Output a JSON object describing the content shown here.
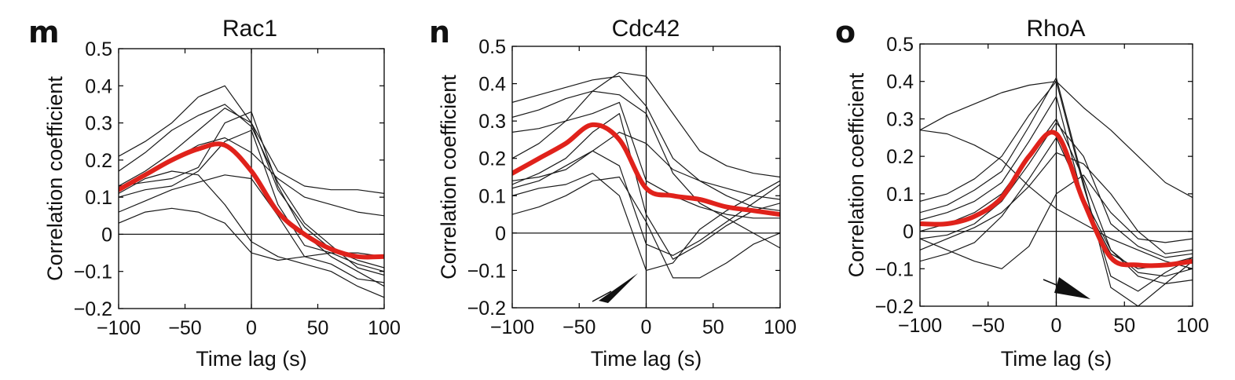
{
  "chart_data": [
    {
      "type": "line",
      "panel_letter": "m",
      "title": "Rac1",
      "xlabel": "Time lag (s)",
      "ylabel": "Correlation coefficient",
      "xlim": [
        -100,
        100
      ],
      "ylim": [
        -0.2,
        0.5
      ],
      "xticks": [
        -100,
        -50,
        0,
        50,
        100
      ],
      "yticks": [
        -0.2,
        -0.1,
        0,
        0.1,
        0.2,
        0.3,
        0.4,
        0.5
      ],
      "xtick_labels": [
        "−100",
        "−50",
        "0",
        "50",
        "100"
      ],
      "ytick_labels": [
        "−0.2",
        "−0.1",
        "0",
        "0.1",
        "0.2",
        "0.3",
        "0.4",
        "0.5"
      ],
      "x": [
        -100,
        -80,
        -60,
        -40,
        -20,
        0,
        20,
        40,
        60,
        80,
        100
      ],
      "mean": [
        0.12,
        0.16,
        0.2,
        0.23,
        0.24,
        0.17,
        0.06,
        0.0,
        -0.04,
        -0.06,
        -0.06
      ],
      "series": [
        {
          "values": [
            0.21,
            0.25,
            0.3,
            0.37,
            0.4,
            0.3,
            0.12,
            0.02,
            -0.04,
            -0.07,
            -0.09
          ]
        },
        {
          "values": [
            0.17,
            0.22,
            0.28,
            0.32,
            0.35,
            0.29,
            0.14,
            0.03,
            -0.03,
            -0.09,
            -0.11
          ]
        },
        {
          "values": [
            0.13,
            0.17,
            0.22,
            0.28,
            0.34,
            0.3,
            0.17,
            0.13,
            0.12,
            0.12,
            0.11
          ]
        },
        {
          "values": [
            0.12,
            0.16,
            0.2,
            0.24,
            0.26,
            0.22,
            0.15,
            0.1,
            0.08,
            0.06,
            0.05
          ]
        },
        {
          "values": [
            0.13,
            0.14,
            0.15,
            0.18,
            0.3,
            0.33,
            0.13,
            0.0,
            -0.06,
            -0.1,
            -0.14
          ]
        },
        {
          "values": [
            0.11,
            0.15,
            0.17,
            0.16,
            0.08,
            -0.02,
            -0.06,
            -0.08,
            -0.1,
            -0.14,
            -0.17
          ]
        },
        {
          "values": [
            0.06,
            0.09,
            0.12,
            0.14,
            0.16,
            0.15,
            0.05,
            -0.06,
            -0.08,
            -0.12,
            -0.13
          ]
        },
        {
          "values": [
            0.03,
            0.06,
            0.07,
            0.06,
            0.03,
            -0.05,
            -0.07,
            -0.06,
            -0.05,
            -0.08,
            -0.1
          ]
        },
        {
          "values": [
            0.1,
            0.12,
            0.13,
            0.17,
            0.25,
            0.28,
            0.08,
            -0.03,
            -0.05,
            -0.05,
            -0.06
          ]
        },
        {
          "values": [
            0.0,
            0.0,
            0.0,
            0.0,
            0.0,
            0.0,
            0.0,
            0.0,
            0.0,
            0.0,
            0.0
          ]
        }
      ]
    },
    {
      "type": "line",
      "panel_letter": "n",
      "title": "Cdc42",
      "xlabel": "Time lag (s)",
      "ylabel": "Correlation coefficient",
      "xlim": [
        -100,
        100
      ],
      "ylim": [
        -0.2,
        0.5
      ],
      "xticks": [
        -100,
        -50,
        0,
        50,
        100
      ],
      "yticks": [
        -0.2,
        -0.1,
        0,
        0.1,
        0.2,
        0.3,
        0.4,
        0.5
      ],
      "xtick_labels": [
        "−100",
        "−50",
        "0",
        "50",
        "100"
      ],
      "ytick_labels": [
        "−0.2",
        "−0.1",
        "0",
        "0.1",
        "0.2",
        "0.3",
        "0.4",
        "0.5"
      ],
      "annotation": "arrowhead at (−25, −0.13) pointing toward lag 0",
      "x": [
        -100,
        -80,
        -60,
        -40,
        -20,
        0,
        20,
        40,
        60,
        80,
        100
      ],
      "mean": [
        0.16,
        0.2,
        0.24,
        0.29,
        0.25,
        0.12,
        0.1,
        0.09,
        0.07,
        0.06,
        0.05
      ],
      "series": [
        {
          "values": [
            0.35,
            0.37,
            0.39,
            0.41,
            0.42,
            0.34,
            0.2,
            0.14,
            0.1,
            0.07,
            0.06
          ]
        },
        {
          "values": [
            0.2,
            0.24,
            0.3,
            0.38,
            0.43,
            0.42,
            0.32,
            0.22,
            0.18,
            0.16,
            0.15
          ]
        },
        {
          "values": [
            0.31,
            0.33,
            0.36,
            0.38,
            0.37,
            0.32,
            0.16,
            0.08,
            0.04,
            0.0,
            -0.04
          ]
        },
        {
          "values": [
            0.27,
            0.28,
            0.3,
            0.32,
            0.35,
            0.14,
            0.1,
            0.07,
            0.05,
            0.04,
            0.04
          ]
        },
        {
          "values": [
            0.13,
            0.16,
            0.2,
            0.27,
            0.32,
            0.05,
            -0.07,
            -0.03,
            0.02,
            0.06,
            0.08
          ]
        },
        {
          "values": [
            0.12,
            0.14,
            0.18,
            0.22,
            0.18,
            -0.03,
            -0.06,
            -0.02,
            0.03,
            0.08,
            0.13
          ]
        },
        {
          "values": [
            0.1,
            0.12,
            0.13,
            0.16,
            0.1,
            -0.1,
            -0.08,
            0.01,
            0.06,
            0.1,
            0.14
          ]
        },
        {
          "values": [
            0.05,
            0.07,
            0.1,
            0.14,
            0.15,
            0.03,
            -0.12,
            -0.12,
            -0.08,
            -0.03,
            0.0
          ]
        },
        {
          "values": [
            0.14,
            0.15,
            0.17,
            0.22,
            0.27,
            0.24,
            0.17,
            0.14,
            0.12,
            0.1,
            0.09
          ]
        },
        {
          "values": [
            0.0,
            0.0,
            0.0,
            0.0,
            0.0,
            0.0,
            0.0,
            0.0,
            0.0,
            0.0,
            0.0
          ]
        }
      ]
    },
    {
      "type": "line",
      "panel_letter": "o",
      "title": "RhoA",
      "xlabel": "Time lag (s)",
      "ylabel": "Correlation coefficient",
      "xlim": [
        -100,
        100
      ],
      "ylim": [
        -0.2,
        0.5
      ],
      "xticks": [
        -100,
        -50,
        0,
        50,
        100
      ],
      "yticks": [
        -0.2,
        -0.1,
        0,
        0.1,
        0.2,
        0.3,
        0.4,
        0.5
      ],
      "xtick_labels": [
        "−100",
        "−50",
        "0",
        "50",
        "100"
      ],
      "ytick_labels": [
        "−0.2",
        "−0.1",
        "0",
        "0.1",
        "0.2",
        "0.3",
        "0.4",
        "0.5"
      ],
      "annotation": "arrowhead at (25, −0.17) pointing down-right",
      "x": [
        -100,
        -80,
        -60,
        -40,
        -20,
        0,
        20,
        40,
        60,
        80,
        100
      ],
      "mean": [
        0.02,
        0.02,
        0.04,
        0.09,
        0.2,
        0.26,
        0.08,
        -0.07,
        -0.09,
        -0.09,
        -0.08
      ],
      "series": [
        {
          "values": [
            0.27,
            0.31,
            0.34,
            0.37,
            0.39,
            0.4,
            0.33,
            0.27,
            0.2,
            0.13,
            0.09
          ]
        },
        {
          "values": [
            0.27,
            0.26,
            0.23,
            0.19,
            0.12,
            0.06,
            0.02,
            -0.02,
            -0.05,
            -0.08,
            -0.1
          ]
        },
        {
          "values": [
            0.08,
            0.1,
            0.14,
            0.2,
            0.31,
            0.4,
            0.12,
            -0.12,
            -0.16,
            -0.11,
            -0.07
          ]
        },
        {
          "values": [
            0.05,
            0.07,
            0.11,
            0.16,
            0.28,
            0.41,
            0.13,
            -0.15,
            -0.2,
            -0.14,
            -0.08
          ]
        },
        {
          "values": [
            0.03,
            0.05,
            0.08,
            0.13,
            0.24,
            0.36,
            0.08,
            -0.06,
            -0.1,
            -0.09,
            -0.07
          ]
        },
        {
          "values": [
            0.0,
            0.02,
            0.05,
            0.1,
            0.2,
            0.3,
            0.14,
            -0.05,
            -0.11,
            -0.12,
            -0.1
          ]
        },
        {
          "values": [
            -0.02,
            -0.01,
            0.02,
            0.08,
            0.18,
            0.29,
            0.2,
            0.02,
            -0.04,
            -0.07,
            -0.06
          ]
        },
        {
          "values": [
            -0.05,
            -0.02,
            0.01,
            0.05,
            0.12,
            0.21,
            0.18,
            0.1,
            0.0,
            -0.06,
            -0.05
          ]
        },
        {
          "values": [
            -0.08,
            -0.06,
            -0.03,
            0.04,
            0.14,
            0.25,
            0.09,
            -0.05,
            -0.12,
            -0.14,
            -0.13
          ]
        },
        {
          "values": [
            -0.02,
            -0.05,
            -0.08,
            -0.1,
            -0.04,
            0.1,
            0.15,
            0.05,
            -0.02,
            -0.03,
            -0.02
          ]
        },
        {
          "values": [
            0.0,
            0.0,
            0.0,
            0.0,
            0.0,
            0.0,
            0.0,
            0.0,
            0.0,
            0.0,
            0.0
          ]
        }
      ]
    }
  ],
  "colors": {
    "mean_line": "#e0221b",
    "trace_line": "#1a1a1a",
    "axes": "#000000"
  }
}
